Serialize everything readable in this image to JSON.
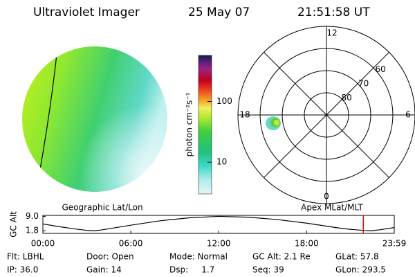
{
  "header": {
    "instrument": "Ultraviolet Imager",
    "date": "25 May 07",
    "time": "21:51:58 UT"
  },
  "labels": {
    "left_image": "Geographic Lat/Lon",
    "right_image": "Apex MLat/MLT"
  },
  "chart_data": [
    {
      "type": "colorbar",
      "label": "photon cm⁻²s⁻¹",
      "log": true,
      "ylim": [
        3,
        575
      ],
      "yticks": [
        10,
        100
      ]
    },
    {
      "type": "polar",
      "rlim": [
        90,
        50
      ],
      "rticks": [
        80,
        70,
        60
      ],
      "theta_ticks": [
        12,
        6,
        0,
        18
      ]
    },
    {
      "type": "line",
      "ylabel": "GC Alt",
      "color": "#000000",
      "marker_color": "#ff0000",
      "x": [
        0,
        1,
        2,
        3,
        3.5,
        4,
        6,
        8,
        10,
        12,
        14,
        16,
        18,
        20,
        21,
        22,
        22.4,
        23,
        23.98
      ],
      "values": [
        5.2,
        4.0,
        2.9,
        2.0,
        1.8,
        2.2,
        4.6,
        6.8,
        8.3,
        9.0,
        8.6,
        7.4,
        5.6,
        3.4,
        2.5,
        1.9,
        1.8,
        2.3,
        3.4
      ],
      "marker_x": 21.87,
      "xlim": [
        0,
        23.98
      ],
      "ylim": [
        0.5,
        9.5
      ],
      "xticks": [
        {
          "value": 0,
          "label": "00:00"
        },
        {
          "value": 6,
          "label": "06:00"
        },
        {
          "value": 12,
          "label": "12:00"
        },
        {
          "value": 18,
          "label": "18:00"
        },
        {
          "value": 23.98,
          "label": "23:59"
        }
      ],
      "yticks": [
        {
          "value": 9,
          "label": "9.0"
        },
        {
          "value": 1.8,
          "label": "1.8"
        }
      ]
    }
  ],
  "footer": {
    "rows": [
      [
        "Flt: LBHL",
        "Door: Open",
        "Mode: Normal",
        "GC Alt: 2.1 Re",
        "GLat: 57.8"
      ],
      [
        "IP: 36.0",
        "Gain: 14",
        "Dsp:     1.7",
        "Seq: 39",
        "GLon: 293.5"
      ]
    ]
  }
}
